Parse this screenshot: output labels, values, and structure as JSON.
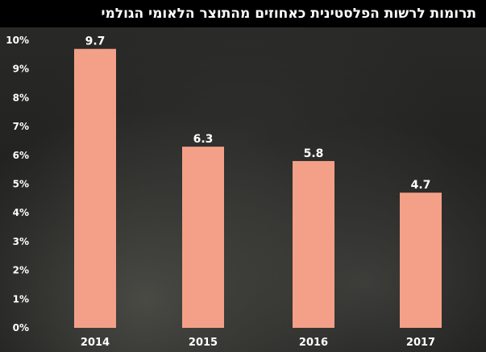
{
  "chart_data": {
    "type": "bar",
    "title": "תרומות לרשות הפלסטינית כאחוזים מהתוצר הלאומי הגולמי",
    "categories": [
      "2014",
      "2015",
      "2016",
      "2017"
    ],
    "values": [
      9.7,
      6.3,
      5.8,
      4.7
    ],
    "data_labels": [
      "9.7",
      "6.3",
      "5.8",
      "4.7"
    ],
    "ylim": [
      0,
      10
    ],
    "yticks": [
      "0%",
      "1%",
      "2%",
      "3%",
      "4%",
      "5%",
      "6%",
      "7%",
      "8%",
      "9%",
      "10%"
    ],
    "xlabel": "",
    "ylabel": "",
    "bar_color": "#f4a088",
    "grid": false
  }
}
